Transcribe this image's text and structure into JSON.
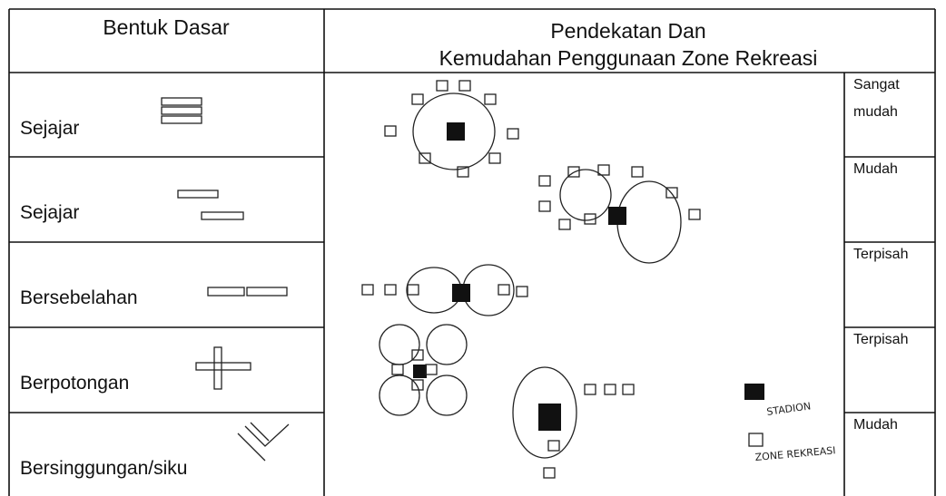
{
  "header": {
    "shape_column": "Bentuk Dasar",
    "approach_column": [
      "Pendekatan Dan",
      "Kemudahan Penggunaan Zone Rekreasi"
    ]
  },
  "rows": [
    {
      "shape": "Sejajar",
      "access": "Sangat mudah"
    },
    {
      "shape": "Sejajar",
      "access": "Mudah"
    },
    {
      "shape": "Bersebelahan",
      "access": "Terpisah"
    },
    {
      "shape": "Berpotongan",
      "access": "Terpisah"
    },
    {
      "shape": "Bersinggungan/siku",
      "access": "Mudah"
    }
  ],
  "legend": {
    "stadium": "STADION",
    "zone": "ZONE REKREASI"
  }
}
